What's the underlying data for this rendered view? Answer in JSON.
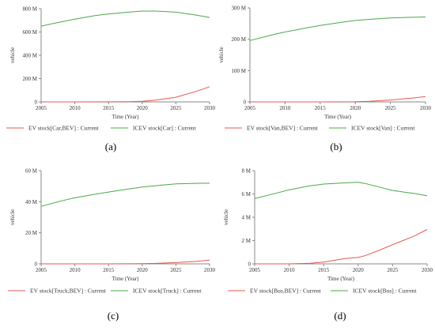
{
  "panels": {
    "a": {
      "label": "(a)"
    },
    "b": {
      "label": "(b)"
    },
    "c": {
      "label": "(c)"
    },
    "d": {
      "label": "(d)"
    }
  },
  "colors": {
    "ev": "#e8574f",
    "icev": "#4aa84a",
    "axis": "#8a8a8a",
    "text": "#333333"
  },
  "chart_data": [
    {
      "id": "a",
      "type": "line",
      "xlabel": "Time (Year)",
      "ylabel": "vehicle",
      "xlim": [
        2005,
        2030
      ],
      "ylim": [
        0,
        800
      ],
      "x_ticks": [
        "2005",
        "2010",
        "2015",
        "2020",
        "2025",
        "2030"
      ],
      "y_ticks": [
        "0",
        "200 M",
        "400 M",
        "600 M",
        "800 M"
      ],
      "y_tick_values": [
        0,
        200,
        400,
        600,
        800
      ],
      "series": [
        {
          "name": "EV stock[Car,BEV] : Current",
          "color": "#e8574f",
          "x": [
            2005,
            2010,
            2015,
            2018,
            2020,
            2022,
            2025,
            2028,
            2030
          ],
          "y": [
            0,
            0,
            0.5,
            2,
            5,
            15,
            40,
            90,
            130
          ]
        },
        {
          "name": "ICEV stock[Car] : Current",
          "color": "#4aa84a",
          "x": [
            2005,
            2007,
            2010,
            2013,
            2015,
            2018,
            2020,
            2022,
            2025,
            2028,
            2030
          ],
          "y": [
            650,
            675,
            710,
            740,
            755,
            770,
            780,
            780,
            770,
            745,
            725
          ]
        }
      ]
    },
    {
      "id": "b",
      "type": "line",
      "xlabel": "Time (Year)",
      "ylabel": "vehicle",
      "xlim": [
        2005,
        2030
      ],
      "ylim": [
        0,
        300
      ],
      "x_ticks": [
        "2005",
        "2010",
        "2015",
        "2020",
        "2025",
        "2030"
      ],
      "y_ticks": [
        "0",
        "100 M",
        "200 M",
        "300 M"
      ],
      "y_tick_values": [
        0,
        100,
        200,
        300
      ],
      "series": [
        {
          "name": "EV stock[Van,BEV] : Current",
          "color": "#e8574f",
          "x": [
            2005,
            2010,
            2015,
            2020,
            2022,
            2025,
            2028,
            2030
          ],
          "y": [
            0,
            0,
            0,
            0.5,
            2,
            6,
            12,
            17
          ]
        },
        {
          "name": "ICEV stock[Van] : Current",
          "color": "#4aa84a",
          "x": [
            2005,
            2008,
            2010,
            2013,
            2015,
            2018,
            2020,
            2023,
            2025,
            2028,
            2030
          ],
          "y": [
            196,
            213,
            223,
            236,
            244,
            254,
            260,
            265,
            268,
            270,
            271
          ]
        }
      ]
    },
    {
      "id": "c",
      "type": "line",
      "xlabel": "Time (Year)",
      "ylabel": "vehicle",
      "xlim": [
        2005,
        2030
      ],
      "ylim": [
        0,
        60
      ],
      "x_ticks": [
        "2005",
        "2010",
        "2015",
        "2020",
        "2025",
        "2030"
      ],
      "y_ticks": [
        "0",
        "20 M",
        "40 M",
        "60 M"
      ],
      "y_tick_values": [
        0,
        20,
        40,
        60
      ],
      "series": [
        {
          "name": "EV stock[Truck,BEV] : Current",
          "color": "#e8574f",
          "x": [
            2005,
            2010,
            2015,
            2020,
            2022,
            2025,
            2028,
            2030
          ],
          "y": [
            0,
            0,
            0,
            0.1,
            0.3,
            0.8,
            1.6,
            2.4
          ]
        },
        {
          "name": "ICEV stock[Truck] : Current",
          "color": "#4aa84a",
          "x": [
            2005,
            2008,
            2010,
            2013,
            2015,
            2018,
            2020,
            2023,
            2025,
            2028,
            2030
          ],
          "y": [
            37,
            40.5,
            42.5,
            44.8,
            46.2,
            48.2,
            49.5,
            50.7,
            51.5,
            51.8,
            51.9
          ]
        }
      ]
    },
    {
      "id": "d",
      "type": "line",
      "xlabel": "Time (Year)",
      "ylabel": "vehicle",
      "xlim": [
        2005,
        2030
      ],
      "ylim": [
        0,
        8
      ],
      "x_ticks": [
        "2005",
        "2010",
        "2015",
        "2020",
        "2025",
        "2030"
      ],
      "y_ticks": [
        "0",
        "2 M",
        "4 M",
        "6 M",
        "8 M"
      ],
      "y_tick_values": [
        0,
        2,
        4,
        6,
        8
      ],
      "series": [
        {
          "name": "EV stock[Bus,BEV] : Current",
          "color": "#e8574f",
          "x": [
            2005,
            2010,
            2013,
            2015,
            2018,
            2020,
            2021,
            2023,
            2025,
            2028,
            2030
          ],
          "y": [
            0,
            0,
            0.05,
            0.15,
            0.45,
            0.55,
            0.7,
            1.15,
            1.65,
            2.35,
            2.95
          ]
        },
        {
          "name": "ICEV stock[Bus] : Current",
          "color": "#4aa84a",
          "x": [
            2005,
            2008,
            2010,
            2013,
            2015,
            2018,
            2020,
            2021,
            2023,
            2025,
            2028,
            2030
          ],
          "y": [
            5.6,
            6.05,
            6.35,
            6.7,
            6.85,
            6.95,
            7.0,
            6.9,
            6.6,
            6.3,
            6.05,
            5.85
          ]
        }
      ]
    }
  ]
}
